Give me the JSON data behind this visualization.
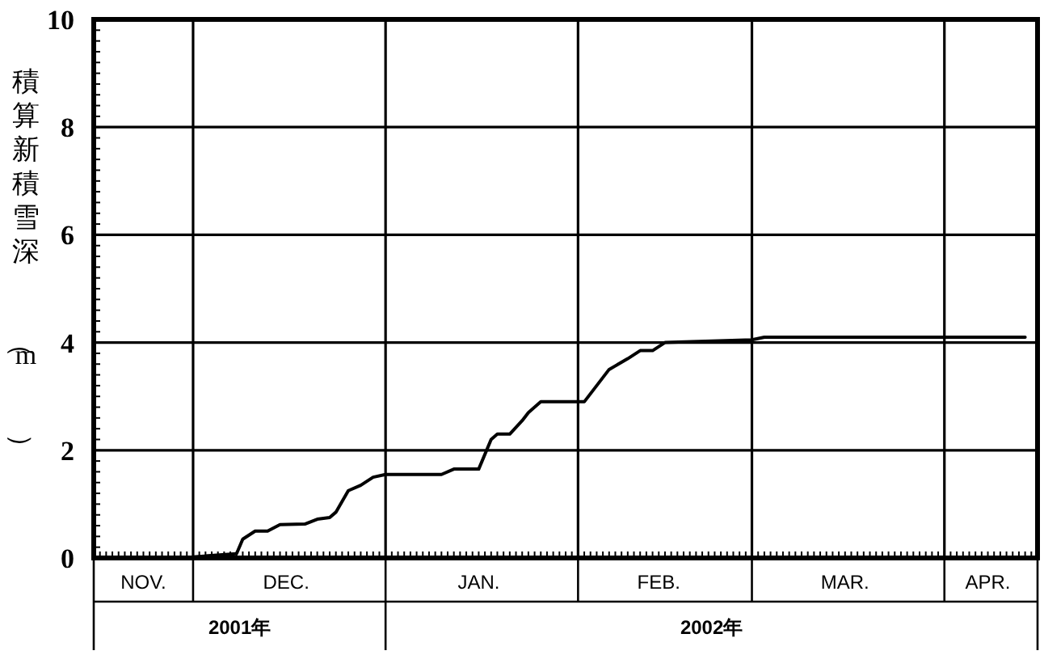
{
  "chart_data": {
    "type": "line",
    "ylabel": "積算新積雪深（m）",
    "x": [
      "2001-12-01",
      "2001-12-08",
      "2001-12-09",
      "2001-12-11",
      "2001-12-13",
      "2001-12-15",
      "2001-12-19",
      "2001-12-21",
      "2001-12-23",
      "2001-12-24",
      "2001-12-26",
      "2001-12-28",
      "2001-12-30",
      "2002-01-01",
      "2002-01-10",
      "2002-01-12",
      "2002-01-16",
      "2002-01-18",
      "2002-01-19",
      "2002-01-21",
      "2002-01-23",
      "2002-01-24",
      "2002-01-26",
      "2002-02-02",
      "2002-02-06",
      "2002-02-09",
      "2002-02-11",
      "2002-02-13",
      "2002-02-15",
      "2002-03-01",
      "2002-03-03",
      "2002-04-14"
    ],
    "series": [
      {
        "color": "#000000",
        "values": [
          0.02,
          0.08,
          0.35,
          0.5,
          0.5,
          0.62,
          0.63,
          0.72,
          0.75,
          0.85,
          1.25,
          1.35,
          1.5,
          1.55,
          1.55,
          1.65,
          1.65,
          2.2,
          2.3,
          2.3,
          2.55,
          2.7,
          2.9,
          2.9,
          3.5,
          3.7,
          3.85,
          3.85,
          4.0,
          4.05,
          4.1,
          4.1
        ]
      }
    ],
    "xlim": [
      "2001-11-15",
      "2002-04-16"
    ],
    "xticks": [
      {
        "value": "2001-11-23",
        "label": "NOV."
      },
      {
        "value": "2001-12-01",
        "label": null
      },
      {
        "value": "2001-12-16",
        "label": "DEC."
      },
      {
        "value": "2002-01-01",
        "label": null
      },
      {
        "value": "2002-01-16",
        "label": "JAN."
      },
      {
        "value": "2002-02-01",
        "label": null
      },
      {
        "value": "2002-02-14",
        "label": "FEB."
      },
      {
        "value": "2002-03-01",
        "label": null
      },
      {
        "value": "2002-03-16",
        "label": "MAR."
      },
      {
        "value": "2002-04-01",
        "label": null
      },
      {
        "value": "2002-04-08",
        "label": "APR."
      }
    ],
    "ylim": [
      0,
      10
    ],
    "yticks": [
      0,
      2,
      4,
      6,
      8,
      10
    ],
    "grid": true,
    "marker": "none",
    "line_style": "solid",
    "annotations": [
      "2001年",
      "2002年"
    ]
  }
}
